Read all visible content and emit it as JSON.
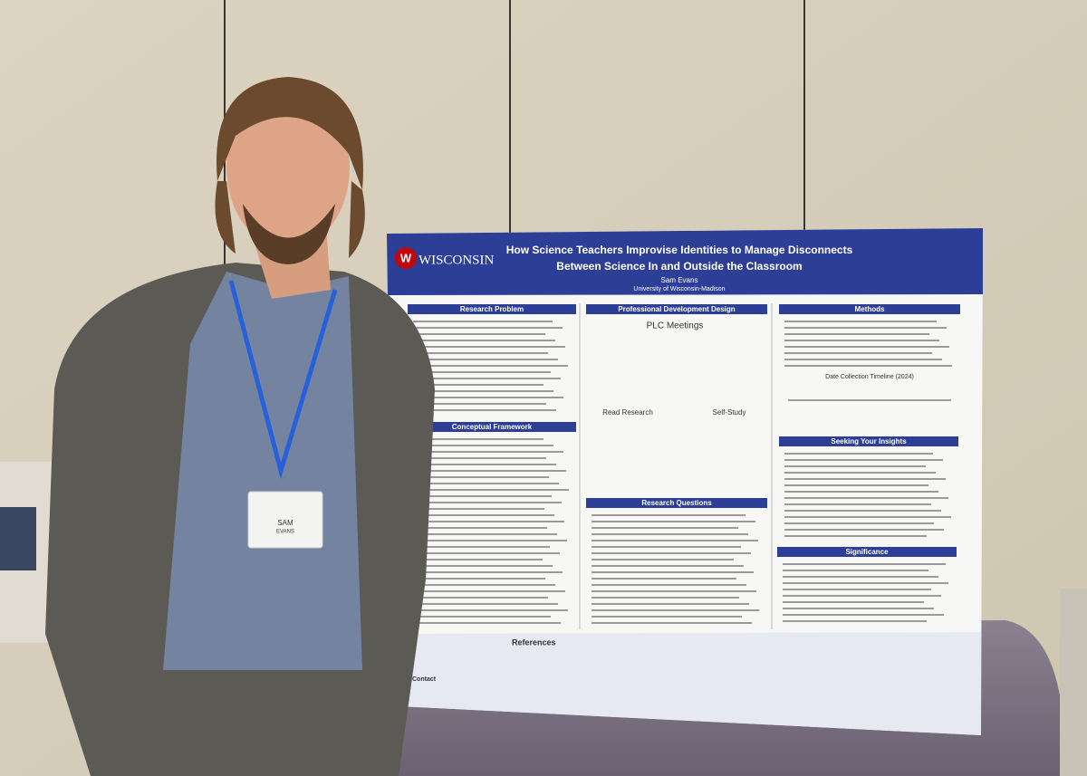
{
  "poster": {
    "logo": "WISCONSIN",
    "title_lines": [
      "How Science Teachers Improvise Identities to Manage Disconnects",
      "Between Science In and Outside the Classroom"
    ],
    "author": "Sam Evans",
    "affiliation": "University of Wisconsin-Madison",
    "sections": [
      {
        "heading": "Research Problem"
      },
      {
        "heading": "Conceptual Framework"
      },
      {
        "heading": "Professional Development Design"
      },
      {
        "heading": "Research Questions"
      },
      {
        "heading": "Methods"
      },
      {
        "heading": "Seeking Your Insights"
      },
      {
        "heading": "Significance"
      }
    ],
    "diagram": {
      "top": "PLC Meetings",
      "left": "Read Research",
      "right": "Self-Study"
    },
    "timeline_title": "Date Collection Timeline (2024)",
    "references": "References",
    "contact": "Contact"
  },
  "badge": {
    "first": "SAM",
    "last": "EVANS"
  }
}
